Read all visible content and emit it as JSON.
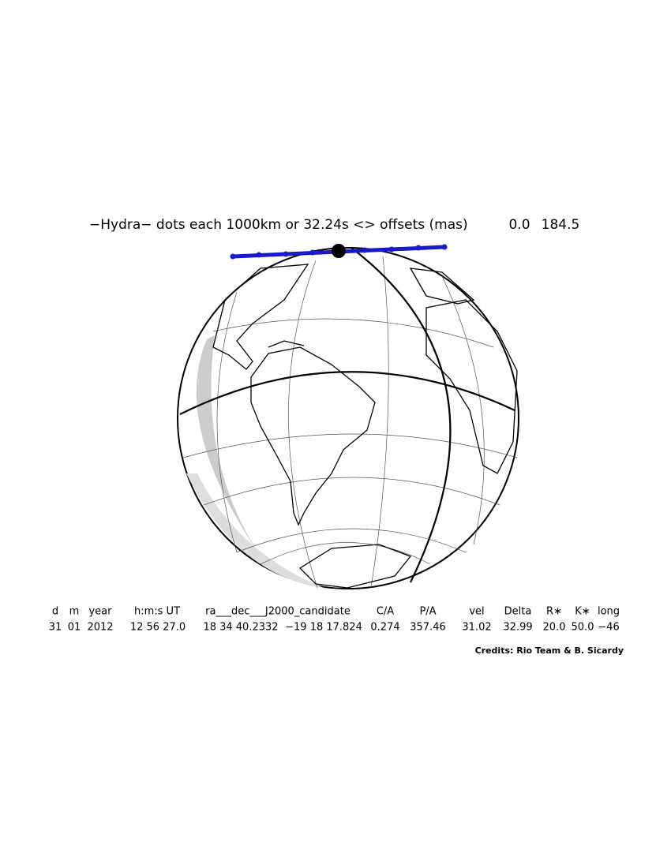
{
  "title": {
    "text": "−Hydra− dots each 1000km or 32.24s <> offsets (mas)",
    "offsets": [
      "0.0",
      "184.5"
    ]
  },
  "table": {
    "header": [
      "d",
      "m",
      "year",
      "h:m:s UT",
      "ra___dec___J2000_candidate",
      "C/A",
      "P/A",
      "vel",
      "Delta",
      "R∗",
      "K∗",
      "long"
    ],
    "row": [
      "31",
      "01",
      "2012",
      "12 56 27.0",
      "18 34 40.2332",
      "−19 18 17.824",
      "0.274",
      "357.46",
      "31.02",
      "32.99",
      "20.0",
      "50.0",
      "−46"
    ]
  },
  "credits": "Credits: Rio Team & B. Sicardy"
}
